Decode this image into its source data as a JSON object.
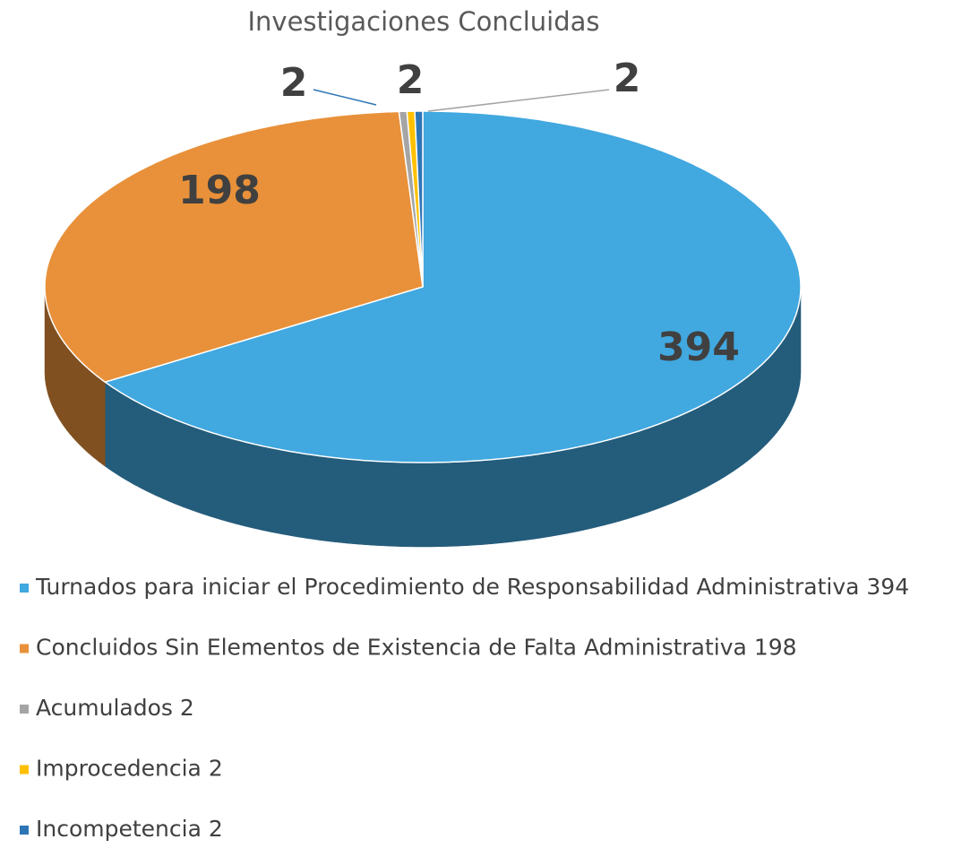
{
  "chart_data": {
    "type": "pie",
    "title": "Investigaciones Concluidas",
    "categories": [
      "Turnados para iniciar el Procedimiento de Responsabilidad Administrativa",
      "Concluidos Sin Elementos de Existencia de Falta Administrativa",
      "Acumulados",
      "Improcedencia",
      "Incompetencia"
    ],
    "values": [
      394,
      198,
      2,
      2,
      2
    ],
    "colors": [
      "#41a8e0",
      "#e8913a",
      "#a5a5a5",
      "#ffc000",
      "#2e75b6"
    ]
  }
}
